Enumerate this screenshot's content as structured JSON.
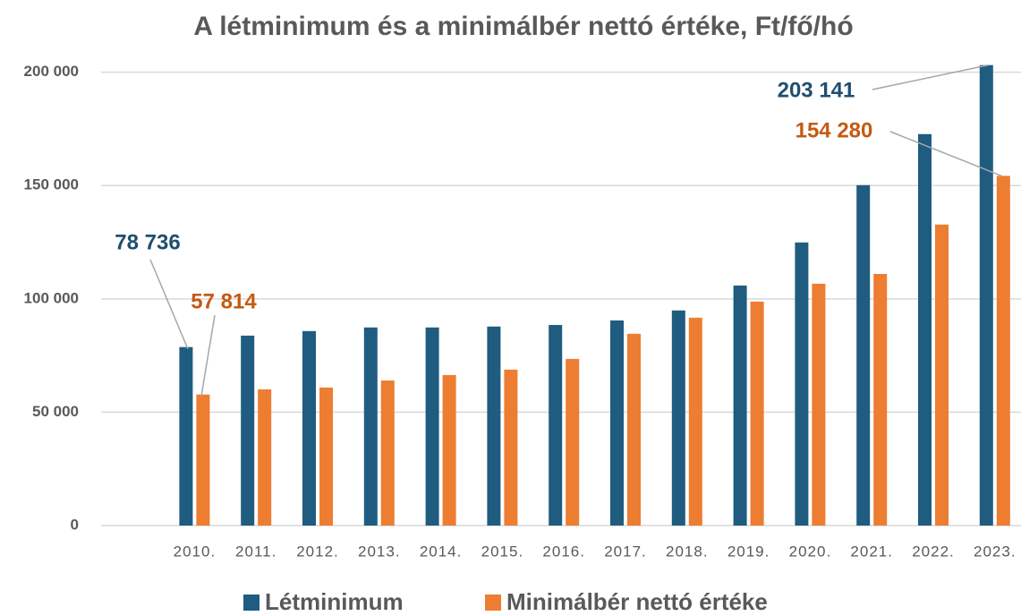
{
  "chart_data": {
    "type": "bar",
    "title": "A létminimum és a minimálbér nettó értéke, Ft/fő/hó",
    "categories": [
      "2010.",
      "2011.",
      "2012.",
      "2013.",
      "2014.",
      "2015.",
      "2016.",
      "2017.",
      "2018.",
      "2019.",
      "2020.",
      "2021.",
      "2022.",
      "2023."
    ],
    "series": [
      {
        "name": "Létminimum",
        "color": "#1f5c80",
        "values": [
          78736,
          83800,
          85800,
          87400,
          87400,
          87800,
          88500,
          90500,
          94900,
          105900,
          124900,
          150200,
          172700,
          203141
        ],
        "value_labels": [
          "78 736",
          null,
          null,
          null,
          null,
          null,
          null,
          null,
          null,
          null,
          null,
          null,
          null,
          "203 141"
        ]
      },
      {
        "name": "Minimálbér nettó értéke",
        "color": "#ed7d31",
        "values": [
          57814,
          60100,
          60900,
          64000,
          66400,
          68800,
          73500,
          84600,
          91700,
          98800,
          106700,
          111000,
          132800,
          154280
        ],
        "value_labels": [
          "57 814",
          null,
          null,
          null,
          null,
          null,
          null,
          null,
          null,
          null,
          null,
          null,
          null,
          "154 280"
        ]
      }
    ],
    "ylim": [
      0,
      205000
    ],
    "yticks": [
      {
        "value": 0,
        "label": "0"
      },
      {
        "value": 50000,
        "label": "50 000"
      },
      {
        "value": 100000,
        "label": "100 000"
      },
      {
        "value": 150000,
        "label": "150 000"
      },
      {
        "value": 200000,
        "label": "200 000"
      }
    ],
    "grid": true,
    "legend": "bottom"
  }
}
